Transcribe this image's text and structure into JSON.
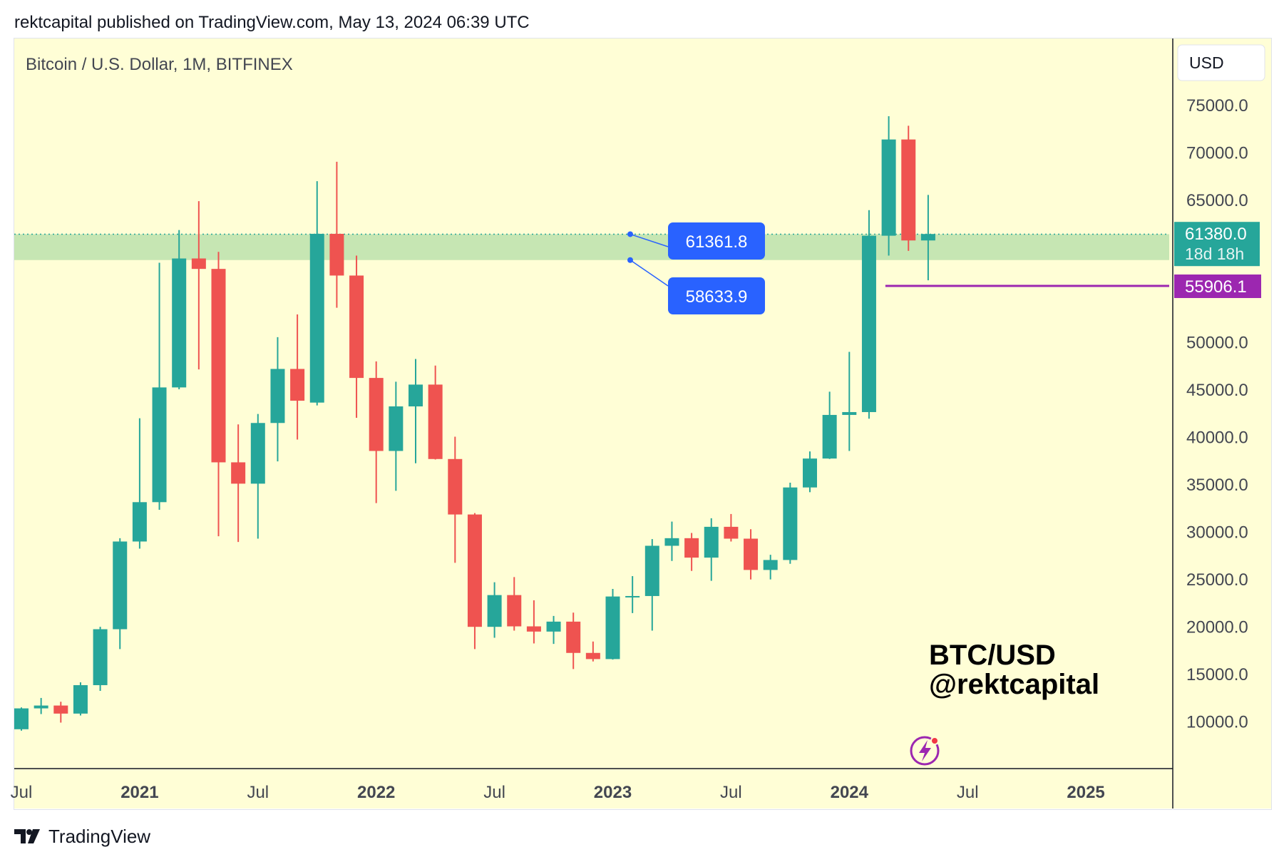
{
  "header": {
    "published": "rektcapital published on TradingView.com, May 13, 2024 06:39 UTC"
  },
  "chart_header": {
    "symbol": "Bitcoin / U.S. Dollar, 1M, BITFINEX",
    "currency": "USD"
  },
  "watermark": {
    "line1": "BTC/USD",
    "line2": "@rektcapital"
  },
  "footer": {
    "brand": "TradingView"
  },
  "colors": {
    "background": "#fffed6",
    "up": "#26a69a",
    "down": "#ef5350",
    "zone": "#c6e6b3",
    "callout": "#2962ff",
    "price_label": "#26a69a",
    "support_line": "#9c27b0"
  },
  "chart_data": {
    "type": "candlestick",
    "title": "Bitcoin / U.S. Dollar, 1M, BITFINEX",
    "x_ticks": [
      {
        "label": "Jul",
        "bold": false,
        "date": "2020-07"
      },
      {
        "label": "2021",
        "bold": true,
        "date": "2021-01"
      },
      {
        "label": "Jul",
        "bold": false,
        "date": "2021-07"
      },
      {
        "label": "2022",
        "bold": true,
        "date": "2022-01"
      },
      {
        "label": "Jul",
        "bold": false,
        "date": "2022-07"
      },
      {
        "label": "2023",
        "bold": true,
        "date": "2023-01"
      },
      {
        "label": "Jul",
        "bold": false,
        "date": "2023-07"
      },
      {
        "label": "2024",
        "bold": true,
        "date": "2024-01"
      },
      {
        "label": "Jul",
        "bold": false,
        "date": "2024-07"
      },
      {
        "label": "2025",
        "bold": true,
        "date": "2025-01"
      }
    ],
    "y_ticks": [
      "75000.0",
      "70000.0",
      "65000.0",
      "50000.0",
      "45000.0",
      "40000.0",
      "35000.0",
      "30000.0",
      "25000.0",
      "20000.0",
      "15000.0",
      "10000.0"
    ],
    "ylim": [
      5000,
      82000
    ],
    "candles": [
      {
        "date": "2020-07",
        "o": 9150,
        "h": 11450,
        "l": 9000,
        "c": 11350
      },
      {
        "date": "2020-08",
        "o": 11350,
        "h": 12450,
        "l": 10750,
        "c": 11650
      },
      {
        "date": "2020-09",
        "o": 11650,
        "h": 12050,
        "l": 9850,
        "c": 10800
      },
      {
        "date": "2020-10",
        "o": 10800,
        "h": 14100,
        "l": 10600,
        "c": 13800
      },
      {
        "date": "2020-11",
        "o": 13800,
        "h": 19950,
        "l": 13200,
        "c": 19700
      },
      {
        "date": "2020-12",
        "o": 19700,
        "h": 29300,
        "l": 17600,
        "c": 28950
      },
      {
        "date": "2021-01",
        "o": 28950,
        "h": 41950,
        "l": 28200,
        "c": 33100
      },
      {
        "date": "2021-02",
        "o": 33100,
        "h": 58350,
        "l": 32300,
        "c": 45200
      },
      {
        "date": "2021-03",
        "o": 45200,
        "h": 61800,
        "l": 45000,
        "c": 58800
      },
      {
        "date": "2021-04",
        "o": 58800,
        "h": 64850,
        "l": 47100,
        "c": 57700
      },
      {
        "date": "2021-05",
        "o": 57700,
        "h": 59500,
        "l": 29500,
        "c": 37300
      },
      {
        "date": "2021-06",
        "o": 37300,
        "h": 41300,
        "l": 28900,
        "c": 35050
      },
      {
        "date": "2021-07",
        "o": 35050,
        "h": 42400,
        "l": 29250,
        "c": 41450
      },
      {
        "date": "2021-08",
        "o": 41450,
        "h": 50500,
        "l": 37400,
        "c": 47150
      },
      {
        "date": "2021-09",
        "o": 47150,
        "h": 52900,
        "l": 39700,
        "c": 43800
      },
      {
        "date": "2021-10",
        "o": 43600,
        "h": 66950,
        "l": 43300,
        "c": 61400
      },
      {
        "date": "2021-11",
        "o": 61400,
        "h": 69000,
        "l": 53600,
        "c": 57000
      },
      {
        "date": "2021-12",
        "o": 57000,
        "h": 59100,
        "l": 42000,
        "c": 46200
      },
      {
        "date": "2022-01",
        "o": 46200,
        "h": 47950,
        "l": 33000,
        "c": 38500
      },
      {
        "date": "2022-02",
        "o": 38500,
        "h": 45800,
        "l": 34300,
        "c": 43200
      },
      {
        "date": "2022-03",
        "o": 43200,
        "h": 48200,
        "l": 37200,
        "c": 45500
      },
      {
        "date": "2022-04",
        "o": 45500,
        "h": 47500,
        "l": 37600,
        "c": 37650
      },
      {
        "date": "2022-05",
        "o": 37650,
        "h": 40000,
        "l": 26700,
        "c": 31800
      },
      {
        "date": "2022-06",
        "o": 31800,
        "h": 31950,
        "l": 17600,
        "c": 19950
      },
      {
        "date": "2022-07",
        "o": 19950,
        "h": 24650,
        "l": 18800,
        "c": 23300
      },
      {
        "date": "2022-08",
        "o": 23300,
        "h": 25200,
        "l": 19550,
        "c": 20000
      },
      {
        "date": "2022-09",
        "o": 20000,
        "h": 22750,
        "l": 18200,
        "c": 19450
      },
      {
        "date": "2022-10",
        "o": 19450,
        "h": 21100,
        "l": 18150,
        "c": 20500
      },
      {
        "date": "2022-11",
        "o": 20500,
        "h": 21450,
        "l": 15500,
        "c": 17200
      },
      {
        "date": "2022-12",
        "o": 17200,
        "h": 18400,
        "l": 16300,
        "c": 16550
      },
      {
        "date": "2023-01",
        "o": 16550,
        "h": 23950,
        "l": 16500,
        "c": 23150
      },
      {
        "date": "2023-02",
        "o": 23150,
        "h": 25300,
        "l": 21400,
        "c": 23200
      },
      {
        "date": "2023-03",
        "o": 23200,
        "h": 29200,
        "l": 19550,
        "c": 28500
      },
      {
        "date": "2023-04",
        "o": 28500,
        "h": 31050,
        "l": 26900,
        "c": 29300
      },
      {
        "date": "2023-05",
        "o": 29300,
        "h": 29850,
        "l": 25850,
        "c": 27250
      },
      {
        "date": "2023-06",
        "o": 27250,
        "h": 31400,
        "l": 24800,
        "c": 30500
      },
      {
        "date": "2023-07",
        "o": 30500,
        "h": 31850,
        "l": 28950,
        "c": 29250
      },
      {
        "date": "2023-08",
        "o": 29250,
        "h": 30250,
        "l": 24950,
        "c": 25950
      },
      {
        "date": "2023-09",
        "o": 25950,
        "h": 27550,
        "l": 24950,
        "c": 27000
      },
      {
        "date": "2023-10",
        "o": 27000,
        "h": 35150,
        "l": 26600,
        "c": 34650
      },
      {
        "date": "2023-11",
        "o": 34650,
        "h": 38450,
        "l": 34150,
        "c": 37700
      },
      {
        "date": "2023-12",
        "o": 37700,
        "h": 44750,
        "l": 37650,
        "c": 42300
      },
      {
        "date": "2024-01",
        "o": 42300,
        "h": 48950,
        "l": 38500,
        "c": 42600
      },
      {
        "date": "2024-02",
        "o": 42600,
        "h": 63900,
        "l": 41900,
        "c": 61200
      },
      {
        "date": "2024-03",
        "o": 61200,
        "h": 73800,
        "l": 59100,
        "c": 71350
      },
      {
        "date": "2024-04",
        "o": 71350,
        "h": 72800,
        "l": 59600,
        "c": 60700
      },
      {
        "date": "2024-05",
        "o": 60700,
        "h": 65500,
        "l": 56500,
        "c": 61380
      }
    ],
    "zone": {
      "top": 61361.8,
      "bottom": 58633.9
    },
    "callouts": [
      {
        "label": "61361.8",
        "value": 61361.8
      },
      {
        "label": "58633.9",
        "value": 58633.9
      }
    ],
    "last_price": {
      "value": 61380.0,
      "label": "61380.0",
      "countdown": "18d 18h"
    },
    "support": {
      "value": 55906.1,
      "label": "55906.1"
    }
  }
}
